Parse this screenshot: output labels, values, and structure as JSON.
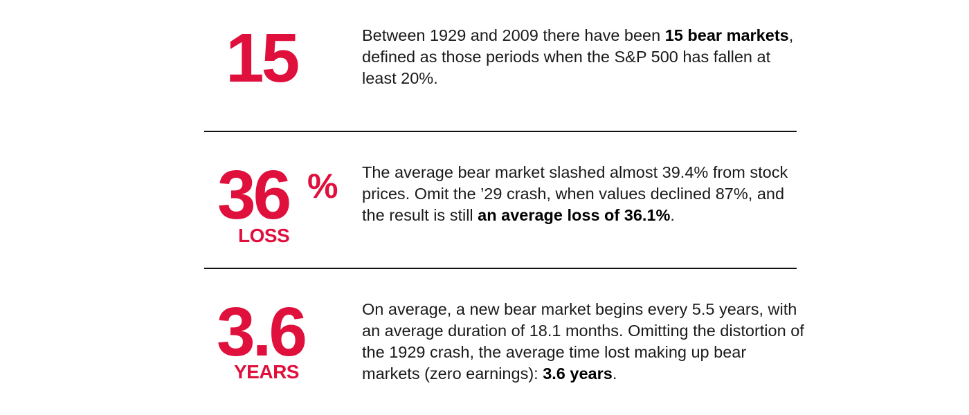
{
  "colors": {
    "accent": "#e0103d",
    "text": "#1a1a1a",
    "divider": "#111111"
  },
  "stats": [
    {
      "figure": "15",
      "sublabel": "",
      "text_before": "Between 1929 and 2009 there have been ",
      "text_bold": "15 bear markets",
      "text_after": ", defined as those periods when the S&P 500 has fallen at least 20%."
    },
    {
      "figure": "36",
      "figure_suffix": "%",
      "sublabel": "LOSS",
      "text_before": "The average bear market slashed almost 39.4% from stock prices. Omit the ’29 crash, when values declined 87%, and the result is still ",
      "text_bold": "an average loss of 36.1%",
      "text_after": "."
    },
    {
      "figure": "3.6",
      "sublabel": "YEARS",
      "text_before": "On average, a new bear market begins every 5.5 years, with an average duration of 18.1 months. Omitting the distortion of the 1929 crash, the average time lost making up bear markets (zero earnings): ",
      "text_bold": "3.6 years",
      "text_after": "."
    }
  ]
}
